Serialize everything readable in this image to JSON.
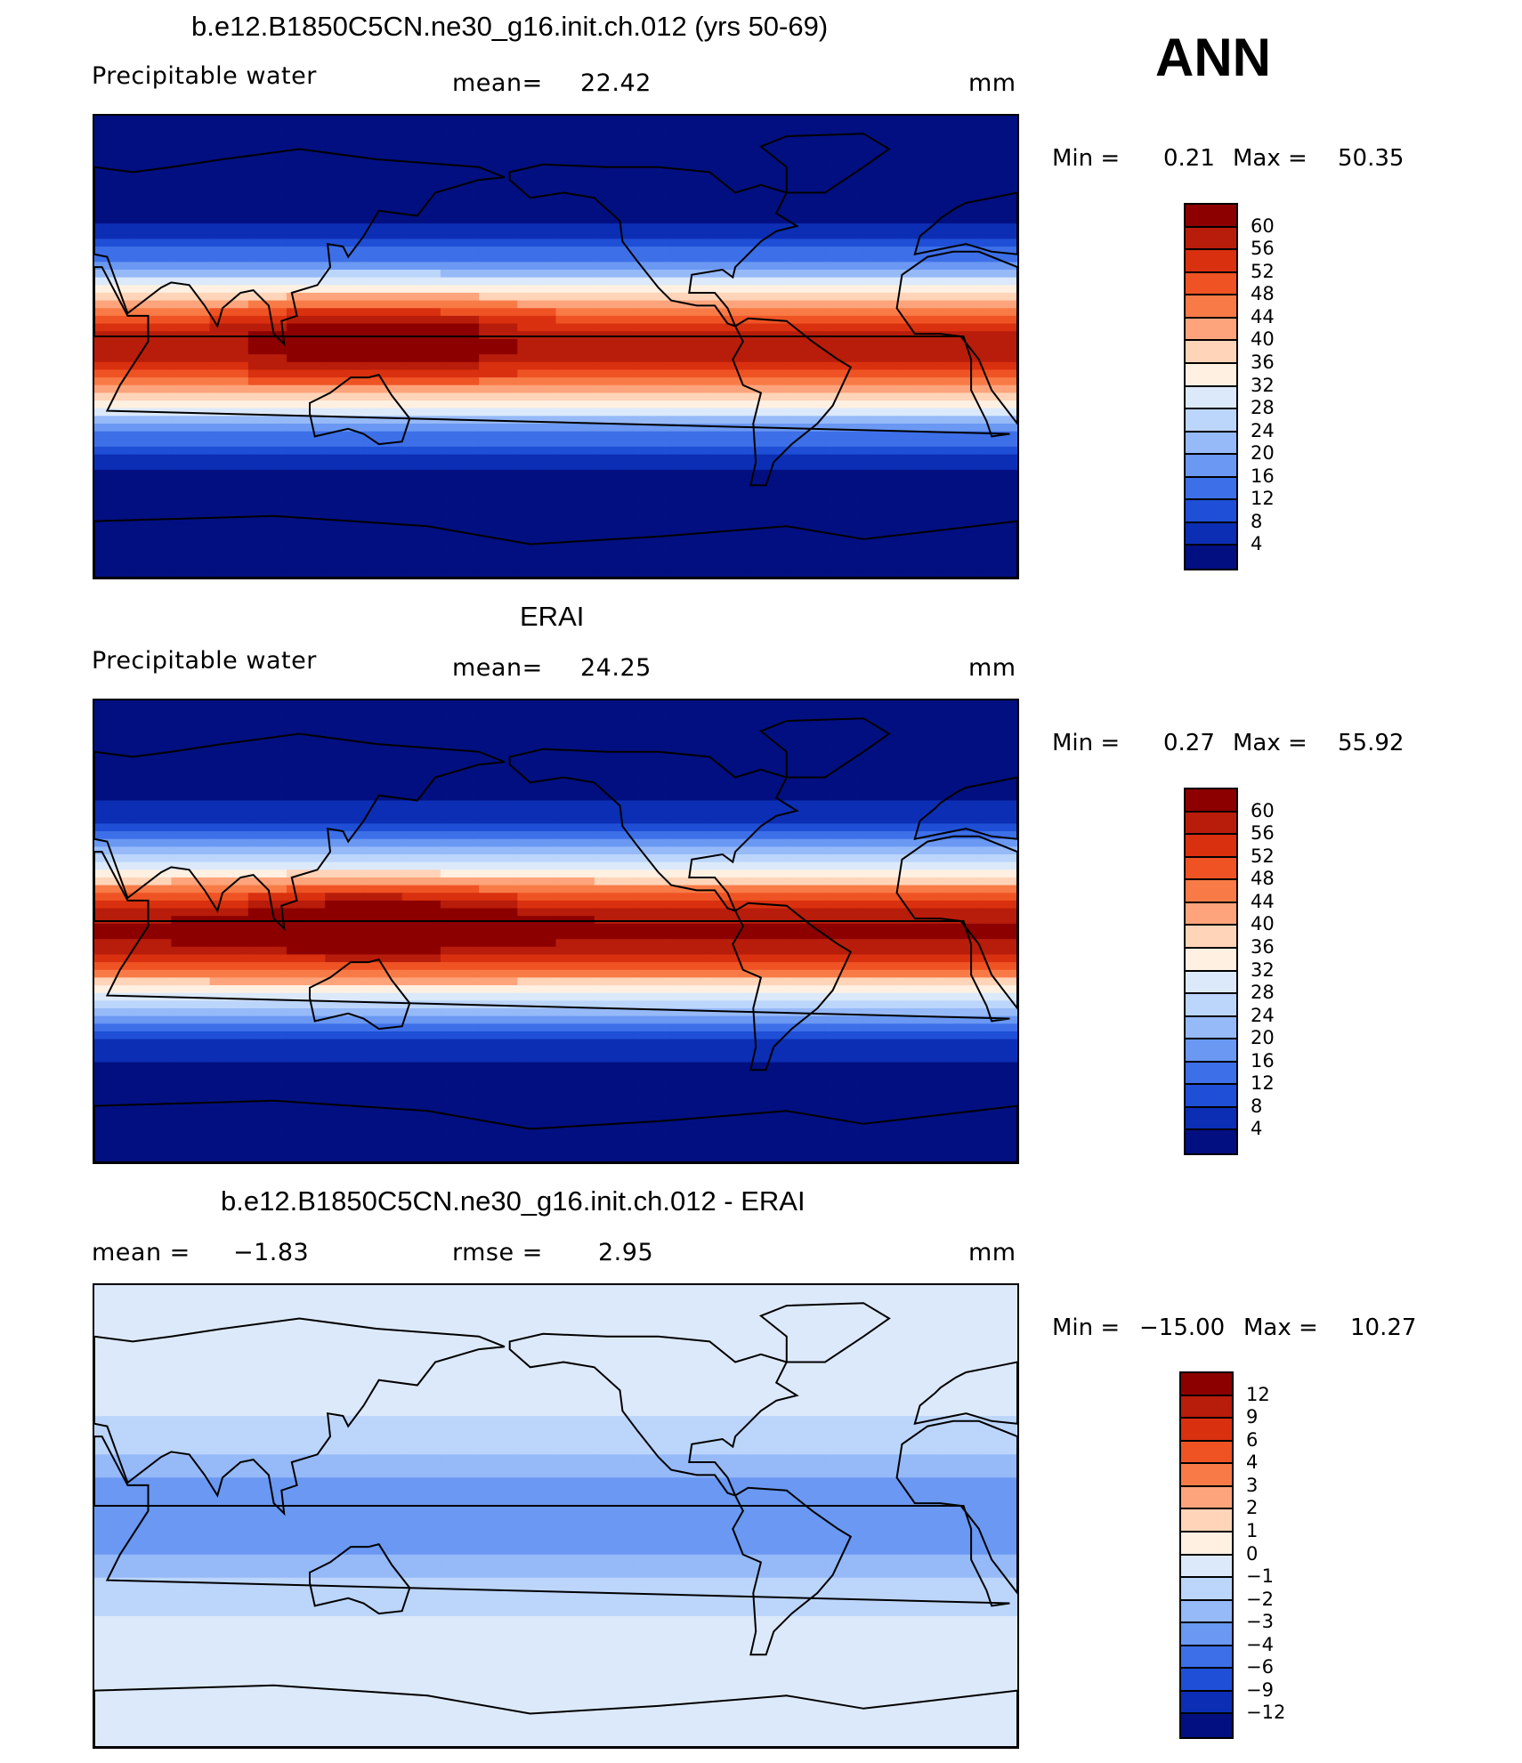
{
  "season": "ANN",
  "panels": [
    {
      "title": "b.e12.B1850C5CN.ne30_g16.init.ch.012 (yrs 50-69)",
      "left_text": "Precipitable  water",
      "center_label": "mean=",
      "center_value": "22.42",
      "center2_label": "",
      "center2_value": "",
      "units": "mm",
      "min_label": "Min  =",
      "min_value": "0.21",
      "max_label": "Max  =",
      "max_value": "50.35",
      "kind": "model",
      "levels": [
        "60",
        "56",
        "52",
        "48",
        "44",
        "40",
        "36",
        "32",
        "28",
        "24",
        "20",
        "16",
        "12",
        "8",
        "4"
      ],
      "colors": [
        "#8c0000",
        "#b81c0a",
        "#d9300f",
        "#ef5324",
        "#f87b47",
        "#fda47c",
        "#ffd4b8",
        "#fff0e2",
        "#dce9fa",
        "#bcd5fb",
        "#96b9f8",
        "#6a98f2",
        "#3d6fe8",
        "#1f4fd6",
        "#0c2eb4",
        "#020f80"
      ]
    },
    {
      "title": "ERAI",
      "left_text": "Precipitable  water",
      "center_label": "mean=",
      "center_value": "24.25",
      "center2_label": "",
      "center2_value": "",
      "units": "mm",
      "min_label": "Min  =",
      "min_value": "0.27",
      "max_label": "Max  =",
      "max_value": "55.92",
      "kind": "obs",
      "levels": [
        "60",
        "56",
        "52",
        "48",
        "44",
        "40",
        "36",
        "32",
        "28",
        "24",
        "20",
        "16",
        "12",
        "8",
        "4"
      ],
      "colors": [
        "#8c0000",
        "#b81c0a",
        "#d9300f",
        "#ef5324",
        "#f87b47",
        "#fda47c",
        "#ffd4b8",
        "#fff0e2",
        "#dce9fa",
        "#bcd5fb",
        "#96b9f8",
        "#6a98f2",
        "#3d6fe8",
        "#1f4fd6",
        "#0c2eb4",
        "#020f80"
      ]
    },
    {
      "title": "b.e12.B1850C5CN.ne30_g16.init.ch.012 - ERAI",
      "left_text": "mean  =",
      "left_value": "−1.83",
      "center_label": "rmse  =",
      "center_value": "2.95",
      "units": "mm",
      "min_label": "Min  =",
      "min_value": "−15.00",
      "max_label": "Max  =",
      "max_value": "10.27",
      "kind": "diff",
      "levels": [
        "12",
        "9",
        "6",
        "4",
        "3",
        "2",
        "1",
        "0",
        "−1",
        "−2",
        "−3",
        "−4",
        "−6",
        "−9",
        "−12"
      ],
      "colors": [
        "#8c0000",
        "#b81c0a",
        "#d9300f",
        "#ef5324",
        "#f87b47",
        "#fda47c",
        "#ffd4b8",
        "#fff0e2",
        "#dce9fa",
        "#bcd5fb",
        "#96b9f8",
        "#6a98f2",
        "#3d6fe8",
        "#1f4fd6",
        "#0c2eb4",
        "#020f80"
      ]
    }
  ]
}
